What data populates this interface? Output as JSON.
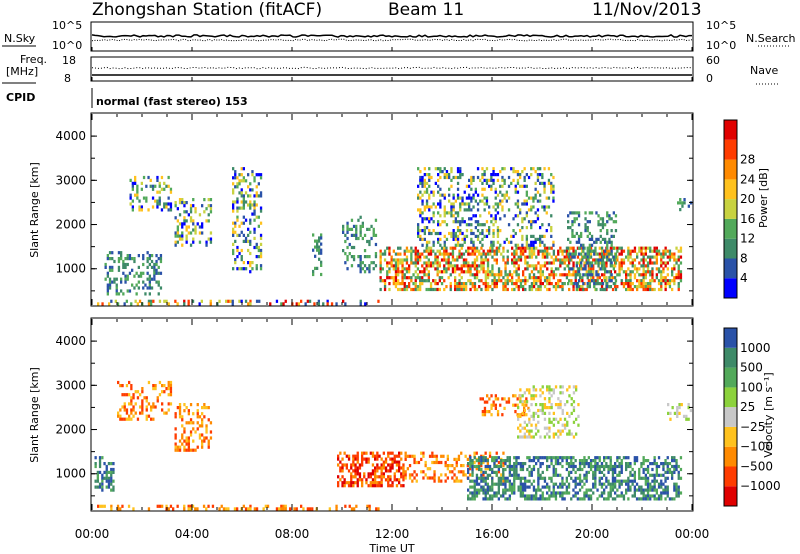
{
  "header": {
    "station_title": "Zhongshan Station (fitACF)",
    "beam": "Beam 11",
    "date": "11/Nov/2013"
  },
  "top_panels": {
    "nsky_label": "N.Sky",
    "nsky_ticks": [
      "10^5",
      "10^0"
    ],
    "nsearch_label": "N.Search",
    "nsearch_ticks": [
      "10^5",
      "10^0"
    ],
    "freq_label": "Freq.",
    "freq_unit": "[MHz]",
    "freq_ticks": [
      "18",
      "8"
    ],
    "nave_label": "Nave",
    "nave_ticks": [
      "60",
      "0"
    ],
    "cpid_label": "CPID",
    "cpid_text": "normal (fast stereo) 153"
  },
  "colors": {
    "power_scale": [
      "#0000ff",
      "#2a52a8",
      "#3e8a68",
      "#52a95a",
      "#c8d240",
      "#ffc21e",
      "#ff8a00",
      "#ff3c00",
      "#e00000"
    ],
    "velocity_scale": [
      "#2a52a8",
      "#3e8a68",
      "#52a95a",
      "#8cd23c",
      "#c8c8c8",
      "#ffc21e",
      "#ff8a00",
      "#ff3c00",
      "#e00000"
    ]
  },
  "chart_data": [
    {
      "type": "heatmap",
      "title": "",
      "xlabel": "Time UT",
      "ylabel": "Slant Range [km]",
      "x_ticks": [
        "00:00",
        "04:00",
        "08:00",
        "12:00",
        "16:00",
        "20:00",
        "00:00"
      ],
      "y_ticks": [
        "1000",
        "2000",
        "3000",
        "4000"
      ],
      "ylim": [
        180,
        4500
      ],
      "colorbar_label": "Power [dB]",
      "colorbar_ticks": [
        "4",
        "8",
        "12",
        "16",
        "20",
        "24",
        "28"
      ],
      "scatter_regions": [
        {
          "t0": 0.2,
          "t1": 11.5,
          "r0": 180,
          "r1": 300,
          "level": "mixed"
        },
        {
          "t0": 0.5,
          "t1": 2.8,
          "r0": 400,
          "r1": 1400,
          "level": "low"
        },
        {
          "t0": 1.5,
          "t1": 3.2,
          "r0": 2300,
          "r1": 3100,
          "level": "mid"
        },
        {
          "t0": 3.3,
          "t1": 4.8,
          "r0": 1500,
          "r1": 2600,
          "level": "mid"
        },
        {
          "t0": 5.6,
          "t1": 6.8,
          "r0": 900,
          "r1": 3300,
          "level": "mid"
        },
        {
          "t0": 8.8,
          "t1": 9.2,
          "r0": 700,
          "r1": 1800,
          "level": "low"
        },
        {
          "t0": 10.0,
          "t1": 11.4,
          "r0": 900,
          "r1": 2200,
          "level": "low"
        },
        {
          "t0": 11.5,
          "t1": 23.6,
          "r0": 500,
          "r1": 1500,
          "level": "high"
        },
        {
          "t0": 13.0,
          "t1": 18.5,
          "r0": 1500,
          "r1": 3300,
          "level": "mid"
        },
        {
          "t0": 19.0,
          "t1": 21.0,
          "r0": 500,
          "r1": 2300,
          "level": "low"
        },
        {
          "t0": 23.4,
          "t1": 24.0,
          "r0": 2300,
          "r1": 2600,
          "level": "low"
        }
      ]
    },
    {
      "type": "heatmap",
      "title": "",
      "xlabel": "Time UT",
      "ylabel": "Slant Range [km]",
      "x_ticks": [
        "00:00",
        "04:00",
        "08:00",
        "12:00",
        "16:00",
        "20:00",
        "00:00"
      ],
      "y_ticks": [
        "1000",
        "2000",
        "3000",
        "4000"
      ],
      "ylim": [
        180,
        4500
      ],
      "colorbar_label": "Velocity [m s⁻¹]",
      "colorbar_ticks": [
        "1000",
        "500",
        "100",
        "25",
        "−25",
        "−100",
        "−500",
        "−1000"
      ],
      "scatter_regions": [
        {
          "t0": 0.2,
          "t1": 11.5,
          "r0": 180,
          "r1": 300,
          "level": "away"
        },
        {
          "t0": 0.1,
          "t1": 0.9,
          "r0": 600,
          "r1": 1400,
          "level": "toward"
        },
        {
          "t0": 1.0,
          "t1": 3.2,
          "r0": 2200,
          "r1": 3100,
          "level": "away"
        },
        {
          "t0": 3.3,
          "t1": 4.8,
          "r0": 1500,
          "r1": 2600,
          "level": "away"
        },
        {
          "t0": 9.8,
          "t1": 12.5,
          "r0": 700,
          "r1": 1500,
          "level": "strong-away"
        },
        {
          "t0": 12.5,
          "t1": 16.5,
          "r0": 800,
          "r1": 1500,
          "level": "away"
        },
        {
          "t0": 15.5,
          "t1": 17.5,
          "r0": 2300,
          "r1": 2800,
          "level": "away"
        },
        {
          "t0": 15.0,
          "t1": 23.6,
          "r0": 400,
          "r1": 1400,
          "level": "toward"
        },
        {
          "t0": 17.0,
          "t1": 19.5,
          "r0": 1800,
          "r1": 3000,
          "level": "neutral"
        },
        {
          "t0": 23.0,
          "t1": 24.0,
          "r0": 2200,
          "r1": 2600,
          "level": "neutral"
        }
      ]
    }
  ]
}
